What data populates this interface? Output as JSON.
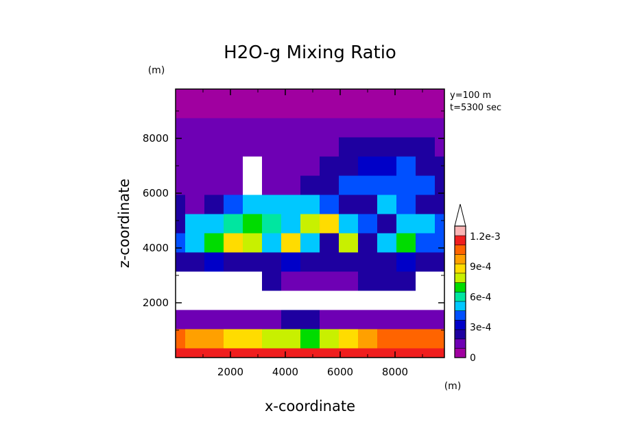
{
  "chart_data": {
    "type": "heatmap",
    "title": "H2O-g Mixing Ratio",
    "xlabel": "x-coordinate",
    "ylabel": "z-coordinate",
    "x_unit": "(m)",
    "y_unit": "(m)",
    "annotations": [
      "y=100 m",
      "t=5300 sec"
    ],
    "xlim": [
      0,
      9800
    ],
    "ylim": [
      0,
      9800
    ],
    "x_ticks": [
      2000,
      4000,
      6000,
      8000
    ],
    "x_tick_labels": [
      "2000",
      "4000",
      "6000",
      "8000"
    ],
    "y_ticks": [
      2000,
      4000,
      6000,
      8000
    ],
    "y_tick_labels": [
      "2000",
      "4000",
      "6000",
      "8000"
    ],
    "grid": false,
    "legend": "colorbar-right",
    "colorbar": {
      "min": 0,
      "max": 0.0013,
      "step": 0.0001,
      "extend": "max",
      "ticks": [
        0,
        0.0003,
        0.0006,
        0.0009,
        0.0012
      ],
      "tick_labels": [
        "0",
        "3e-4",
        "6e-4",
        "9e-4",
        "1.2e-3"
      ],
      "colors": [
        "#a000a0",
        "#6e00b4",
        "#1e00a0",
        "#0000c8",
        "#0050ff",
        "#00c8ff",
        "#00e6a0",
        "#00dc00",
        "#c8f000",
        "#ffdc00",
        "#ffa000",
        "#ff6400",
        "#f01e1e",
        "#fab4b4",
        "#ffffff"
      ]
    },
    "x": [
      0,
      700,
      1400,
      2100,
      2800,
      3500,
      4200,
      4900,
      5600,
      6300,
      7000,
      7700,
      8400,
      9100,
      9800
    ],
    "z": [
      0,
      700,
      1400,
      2100,
      2800,
      3500,
      4200,
      4900,
      5600,
      6300,
      7000,
      7700,
      8400,
      9100,
      9800
    ],
    "values": [
      [
        0.0013,
        0.0013,
        0.0013,
        0.0013,
        0.0013,
        0.0013,
        0.0013,
        0.0013,
        0.0013,
        0.0013,
        0.0013,
        0.0013,
        0.0013,
        0.0013,
        0.0013
      ],
      [
        0.0011,
        0.00105,
        0.001,
        0.00095,
        0.0009,
        0.00085,
        0.0008,
        0.00075,
        0.0008,
        0.0009,
        0.001,
        0.0011,
        0.0012,
        0.00115,
        0.0011
      ],
      [
        0.0001,
        0.0001,
        0.00012,
        0.00015,
        0.00015,
        0.00018,
        0.0002,
        0.0002,
        0.00018,
        0.00015,
        0.00015,
        0.00012,
        0.00015,
        0.00015,
        0.00012
      ],
      [
        0.0014,
        0.0014,
        0.0014,
        0.0014,
        0.0014,
        0.0014,
        0.0014,
        0.0014,
        0.0014,
        0.0014,
        0.0014,
        0.0014,
        0.0014,
        0.0014,
        0.0014
      ],
      [
        0.0014,
        0.0014,
        0.0014,
        0.0014,
        0.0014,
        0.00025,
        0.00018,
        0.00015,
        0.00012,
        0.00012,
        0.0002,
        0.0002,
        0.00025,
        0.0014,
        0.0014
      ],
      [
        0.0002,
        0.0003,
        0.00035,
        0.0003,
        0.0003,
        0.0003,
        0.00035,
        0.0002,
        0.0003,
        0.0003,
        0.0003,
        0.0003,
        0.00035,
        0.0003,
        0.0002
      ],
      [
        0.0004,
        0.0005,
        0.0007,
        0.0009,
        0.00085,
        0.0006,
        0.0009,
        0.0005,
        0.0003,
        0.0008,
        0.0002,
        0.0005,
        0.0007,
        0.0004,
        0.0004
      ],
      [
        0.0003,
        0.0005,
        0.0006,
        0.00065,
        0.0007,
        0.00065,
        0.0006,
        0.0008,
        0.0009,
        0.0006,
        0.0004,
        0.0003,
        0.0005,
        0.0005,
        0.0004
      ],
      [
        0.0002,
        0.0001,
        0.0003,
        0.00045,
        0.0005,
        0.0006,
        0.00055,
        0.0005,
        0.0004,
        0.0003,
        0.00025,
        0.0005,
        0.00045,
        0.0003,
        0.0003
      ],
      [
        0.0001,
        0.0001,
        0.0001,
        0.0001,
        0.0014,
        0.0001,
        0.00015,
        0.0002,
        0.0003,
        0.0004,
        0.0004,
        0.0004,
        0.00045,
        0.0004,
        0.0003
      ],
      [
        0.0001,
        0.0001,
        0.0001,
        0.0001,
        0.0014,
        0.0001,
        0.0001,
        0.00015,
        0.0002,
        0.0003,
        0.00035,
        0.00035,
        0.0004,
        0.0003,
        0.0002
      ],
      [
        0.0001,
        0.0001,
        0.0001,
        0.0001,
        0.0001,
        0.0001,
        0.0001,
        0.0001,
        0.00015,
        0.0002,
        0.00025,
        0.0003,
        0.00025,
        0.0002,
        0.00015
      ],
      [
        0.0001,
        0.0001,
        0.00015,
        0.0001,
        0.0001,
        0.0001,
        0.0001,
        0.0001,
        0.0001,
        0.00015,
        0.00015,
        0.00015,
        0.00015,
        0.0001,
        0.0001
      ],
      [
        5e-05,
        5e-05,
        5e-05,
        5e-05,
        5e-05,
        5e-05,
        5e-05,
        5e-05,
        5e-05,
        5e-05,
        5e-05,
        5e-05,
        5e-05,
        5e-05,
        5e-05
      ],
      [
        5e-05,
        5e-05,
        5e-05,
        5e-05,
        5e-05,
        5e-05,
        5e-05,
        5e-05,
        5e-05,
        5e-05,
        5e-05,
        5e-05,
        5e-05,
        5e-05,
        5e-05
      ]
    ]
  }
}
